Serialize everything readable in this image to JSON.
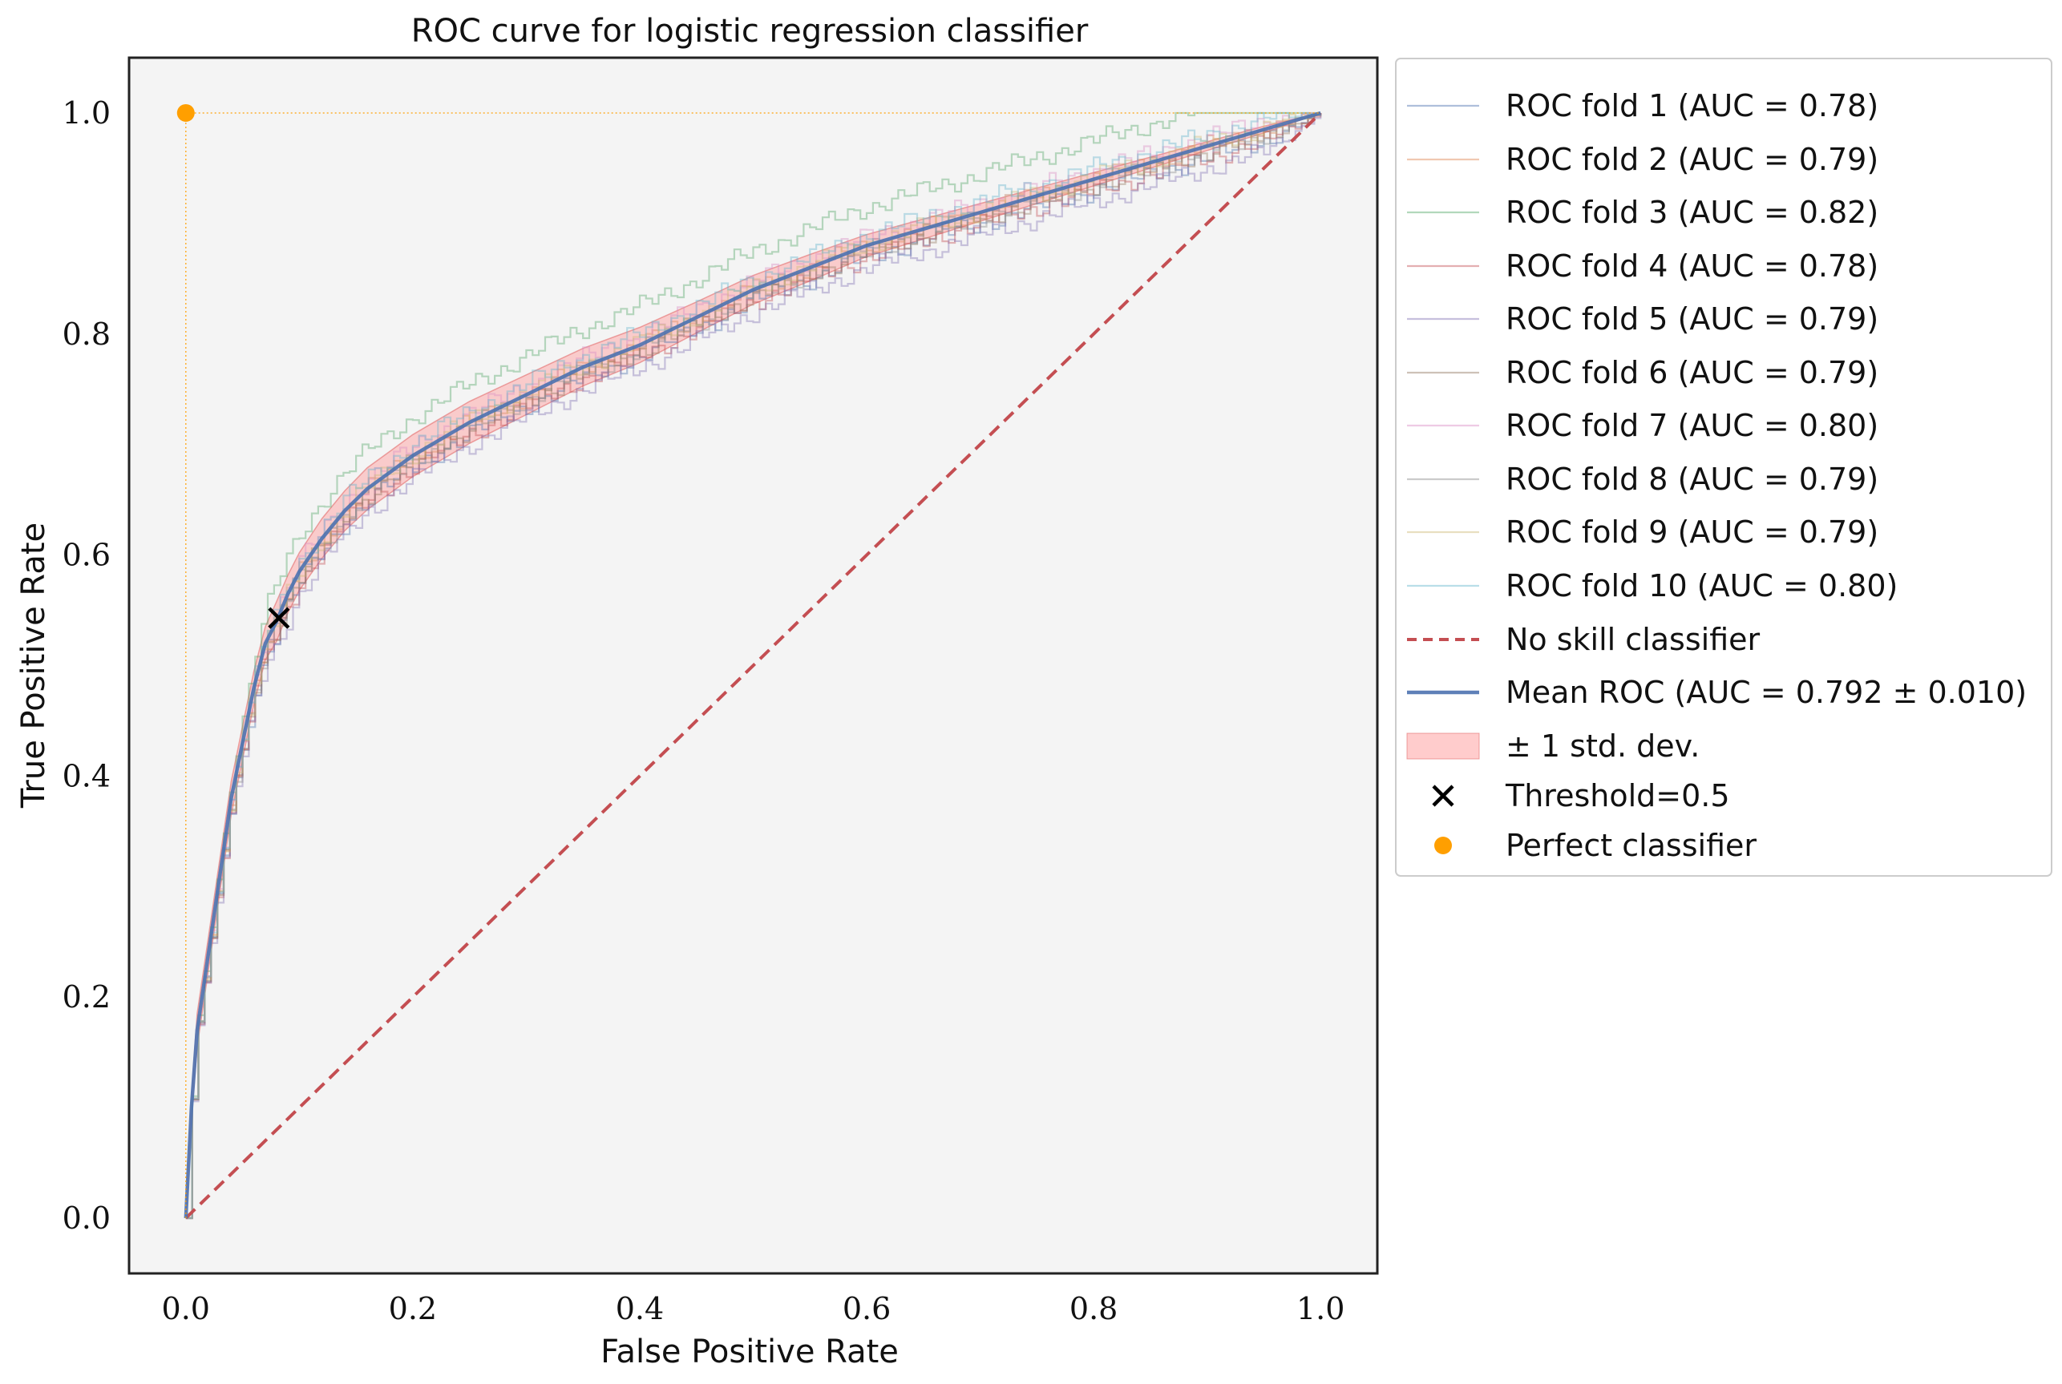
{
  "chart_data": {
    "type": "line",
    "title": "ROC curve for logistic regression classifier",
    "xlabel": "False Positive Rate",
    "ylabel": "True Positive Rate",
    "xlim": [
      -0.05,
      1.05
    ],
    "ylim": [
      -0.05,
      1.05
    ],
    "xticks": [
      "0.0",
      "0.2",
      "0.4",
      "0.6",
      "0.8",
      "1.0"
    ],
    "yticks": [
      "0.0",
      "0.2",
      "0.4",
      "0.6",
      "0.8",
      "1.0"
    ],
    "grid": false,
    "legend_position": "outside-right",
    "mean_roc": {
      "label": "Mean ROC (AUC = 0.792 ± 0.010)",
      "color": "#4c72b0",
      "x": [
        0,
        0.005,
        0.01,
        0.02,
        0.03,
        0.04,
        0.05,
        0.06,
        0.07,
        0.08,
        0.09,
        0.1,
        0.12,
        0.14,
        0.16,
        0.18,
        0.2,
        0.25,
        0.3,
        0.35,
        0.4,
        0.45,
        0.5,
        0.55,
        0.6,
        0.65,
        0.7,
        0.75,
        0.8,
        0.85,
        0.9,
        0.95,
        1.0
      ],
      "y": [
        0,
        0.1,
        0.17,
        0.24,
        0.31,
        0.38,
        0.43,
        0.48,
        0.52,
        0.54,
        0.565,
        0.585,
        0.615,
        0.64,
        0.66,
        0.675,
        0.69,
        0.72,
        0.745,
        0.77,
        0.79,
        0.815,
        0.84,
        0.86,
        0.88,
        0.895,
        0.91,
        0.925,
        0.94,
        0.955,
        0.97,
        0.985,
        1.0
      ]
    },
    "std_band": {
      "label": "± 1 std. dev.",
      "color": "#ff9999",
      "upper": [
        0,
        0.11,
        0.185,
        0.255,
        0.325,
        0.395,
        0.445,
        0.495,
        0.535,
        0.558,
        0.582,
        0.602,
        0.633,
        0.658,
        0.679,
        0.694,
        0.709,
        0.739,
        0.763,
        0.787,
        0.806,
        0.829,
        0.853,
        0.872,
        0.89,
        0.904,
        0.918,
        0.932,
        0.946,
        0.96,
        0.974,
        0.988,
        1.0
      ],
      "lower": [
        0,
        0.09,
        0.155,
        0.225,
        0.295,
        0.365,
        0.415,
        0.465,
        0.505,
        0.522,
        0.548,
        0.568,
        0.597,
        0.622,
        0.641,
        0.656,
        0.671,
        0.701,
        0.727,
        0.753,
        0.774,
        0.801,
        0.827,
        0.848,
        0.87,
        0.886,
        0.902,
        0.918,
        0.934,
        0.95,
        0.966,
        0.982,
        1.0
      ]
    },
    "folds": [
      {
        "name": "ROC fold 1 (AUC = 0.78)",
        "color": "#4c72b0",
        "offset": -0.01
      },
      {
        "name": "ROC fold 2 (AUC = 0.79)",
        "color": "#dd8452",
        "offset": 0.0
      },
      {
        "name": "ROC fold 3 (AUC = 0.82)",
        "color": "#55a868",
        "offset": 0.035
      },
      {
        "name": "ROC fold 4 (AUC = 0.78)",
        "color": "#c44e52",
        "offset": -0.01
      },
      {
        "name": "ROC fold 5 (AUC = 0.79)",
        "color": "#8172b3",
        "offset": -0.02
      },
      {
        "name": "ROC fold 6 (AUC = 0.79)",
        "color": "#937860",
        "offset": -0.005
      },
      {
        "name": "ROC fold 7 (AUC = 0.80)",
        "color": "#da8bc3",
        "offset": 0.008
      },
      {
        "name": "ROC fold 8 (AUC = 0.79)",
        "color": "#8c8c8c",
        "offset": -0.004
      },
      {
        "name": "ROC fold 9 (AUC = 0.79)",
        "color": "#ccb974",
        "offset": 0.002
      },
      {
        "name": "ROC fold 10 (AUC = 0.80)",
        "color": "#64b5cd",
        "offset": 0.01
      }
    ],
    "no_skill": {
      "label": "No skill classifier",
      "color": "#c44e52",
      "x": [
        0,
        1
      ],
      "y": [
        0,
        1
      ]
    },
    "threshold_point": {
      "label": "Threshold=0.5",
      "x": 0.082,
      "y": 0.543,
      "color": "#000000"
    },
    "perfect_point": {
      "label": "Perfect classifier",
      "x": 0,
      "y": 1,
      "color": "#ff9f00"
    },
    "colors": {
      "plot_background": "#f4f4f4",
      "axes_edge": "#222222",
      "text": "#111111"
    }
  }
}
